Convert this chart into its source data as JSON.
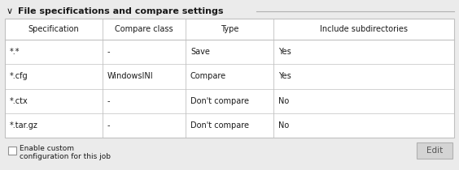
{
  "section_title": "File specifications and compare settings",
  "chevron": "∨",
  "col_headers": [
    "Specification",
    "Compare class",
    "Type",
    "Include subdirectories"
  ],
  "rows": [
    [
      "*.*",
      "-",
      "Save",
      "Yes"
    ],
    [
      "*.cfg",
      "WindowsINI",
      "Compare",
      "Yes"
    ],
    [
      "*.ctx",
      "-",
      "Don't compare",
      "No"
    ],
    [
      "*.tar.gz",
      "-",
      "Don't compare",
      "No"
    ]
  ],
  "checkbox_label": "Enable custom\nconfiguration for this job",
  "edit_button_label": "Edit",
  "bg_color": "#ebebeb",
  "table_bg": "#ffffff",
  "border_color": "#c0c0c0",
  "header_font_size": 7.0,
  "data_font_size": 7.0,
  "title_font_size": 8.0,
  "section_line_color": "#b0b0b0",
  "button_bg": "#d4d4d4",
  "button_border": "#b0b0b0",
  "text_color": "#1a1a1a",
  "fig_width": 5.64,
  "fig_height": 2.1,
  "dpi": 100
}
